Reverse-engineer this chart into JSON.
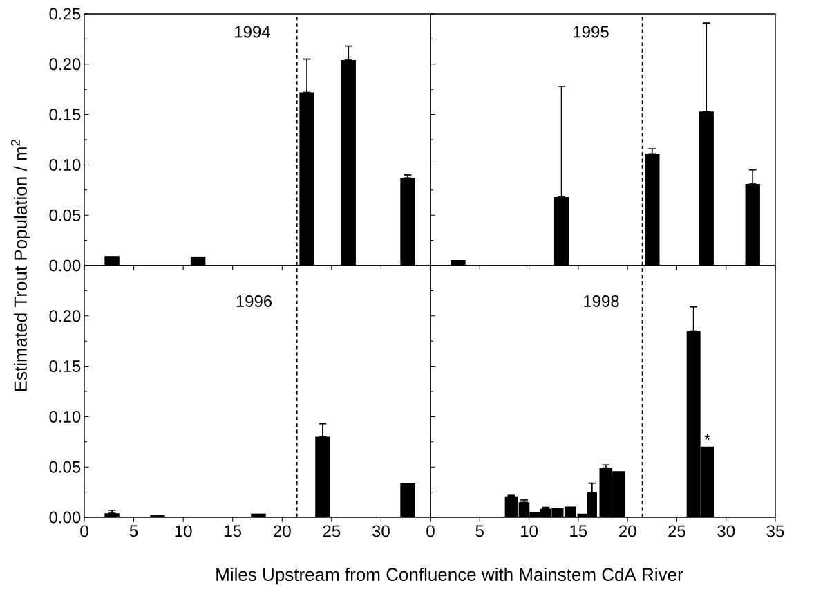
{
  "chart_data": [
    {
      "type": "bar",
      "color": "#000000",
      "annotations": [
        "1994"
      ],
      "ylabel": "Estimated Trout Population / m$^{2}$",
      "x": [
        2.8,
        11.5,
        22.5,
        26.7,
        32.7
      ],
      "values": [
        0.0095,
        0.009,
        0.172,
        0.204,
        0.087
      ],
      "errors": [
        null,
        null,
        [
          0.172,
          0.205
        ],
        [
          0.204,
          0.218
        ],
        [
          0.087,
          0.09
        ]
      ],
      "xlim": [
        0,
        35
      ],
      "ylim": [
        0,
        0.25
      ],
      "xticks": [
        0,
        5,
        10,
        15,
        20,
        25,
        30,
        35
      ],
      "yticks": [
        {
          "value": 0,
          "label": "0.00"
        },
        {
          "value": 0.05,
          "label": "0.05"
        },
        {
          "value": 0.1,
          "label": "0.10"
        },
        {
          "value": 0.15,
          "label": "0.15"
        },
        {
          "value": 0.2,
          "label": "0.20"
        },
        {
          "value": 0.25,
          "label": "0.25"
        }
      ],
      "ref_lines": [
        {
          "axis": "x",
          "value": 21.5,
          "line_style": "dashed"
        }
      ],
      "tick_labels": "y"
    },
    {
      "type": "bar",
      "color": "#000000",
      "annotations": [
        "1995"
      ],
      "x": [
        2.8,
        13.3,
        22.5,
        28.0,
        32.7
      ],
      "values": [
        0.0055,
        0.068,
        0.111,
        0.153,
        0.081
      ],
      "errors": [
        null,
        [
          0.068,
          0.178
        ],
        [
          0.111,
          0.116
        ],
        [
          0.153,
          0.241
        ],
        [
          0.081,
          0.095
        ]
      ],
      "xlim": [
        0,
        35
      ],
      "ylim": [
        0,
        0.25
      ],
      "xticks": [
        0,
        5,
        10,
        15,
        20,
        25,
        30,
        35
      ],
      "yticks": [
        0,
        0.05,
        0.1,
        0.15,
        0.2,
        0.25
      ],
      "ref_lines": [
        {
          "axis": "x",
          "value": 21.5,
          "line_style": "dashed"
        }
      ],
      "tick_labels": false
    },
    {
      "type": "bar",
      "color": "#000000",
      "annotations": [
        "1996"
      ],
      "xlabel": "Miles Upstream from Confluence with Mainstem CdA River",
      "x": [
        2.8,
        7.4,
        17.6,
        24.1,
        32.7
      ],
      "values": [
        0.004,
        0.002,
        0.0037,
        0.08,
        0.034
      ],
      "errors": [
        [
          0.004,
          0.007
        ],
        null,
        null,
        [
          0.08,
          0.093
        ],
        null
      ],
      "xlim": [
        0,
        35
      ],
      "ylim": [
        0,
        0.25
      ],
      "xticks": [
        0,
        5,
        10,
        15,
        20,
        25,
        30,
        {
          "value": 35,
          "label": null
        }
      ],
      "yticks": [
        {
          "value": 0,
          "label": "0.00"
        },
        {
          "value": 0.05,
          "label": "0.05"
        },
        {
          "value": 0.1,
          "label": "0.10"
        },
        {
          "value": 0.15,
          "label": "0.15"
        },
        {
          "value": 0.2,
          "label": "0.20"
        },
        {
          "value": 0.25,
          "label": null
        }
      ],
      "ref_lines": [
        {
          "axis": "x",
          "value": 21.5,
          "line_style": "dashed"
        }
      ]
    },
    {
      "type": "bar",
      "color": "#000000",
      "annotations": [
        "1998",
        {
          "text": "*",
          "x": 28.1,
          "y": 0.0703
        }
      ],
      "x": [
        8.2,
        9.5,
        10.6,
        11.7,
        12.9,
        14.2,
        15.4,
        16.4,
        17.8,
        19.1,
        26.7,
        28.1
      ],
      "values": [
        0.0208,
        0.0149,
        0.0052,
        0.0085,
        0.009,
        0.0107,
        0.0036,
        0.0246,
        0.049,
        0.0459,
        0.185,
        0.0703
      ],
      "errors": [
        [
          0.0208,
          0.0218
        ],
        [
          0.0149,
          0.0173
        ],
        null,
        [
          0.0085,
          0.0099
        ],
        null,
        null,
        null,
        [
          0.0246,
          0.0339
        ],
        [
          0.049,
          0.052
        ],
        null,
        [
          0.185,
          0.209
        ],
        null
      ],
      "xlim": [
        0,
        35
      ],
      "ylim": [
        0,
        0.25
      ],
      "xticks": [
        0,
        5,
        10,
        15,
        20,
        25,
        30,
        35
      ],
      "yticks": [
        0,
        0.05,
        0.1,
        0.15,
        0.2,
        0.25
      ],
      "ref_lines": [
        {
          "axis": "x",
          "value": 21.5,
          "line_style": "dashed"
        }
      ],
      "tick_labels": "x"
    }
  ]
}
